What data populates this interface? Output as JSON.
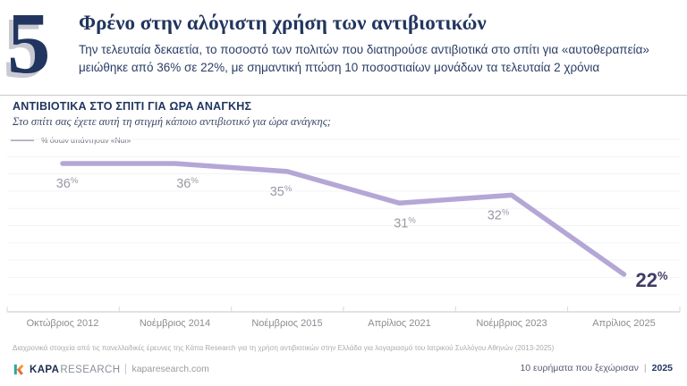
{
  "page": {
    "number": "5",
    "title": "Φρένο στην αλόγιστη χρήση των αντιβιοτικών",
    "subtitle_line1": "Την τελευταία δεκαετία, το ποσοστό των πολιτών που διατηρούσε αντιβιοτικά στο σπίτι για «αυτοθεραπεία»",
    "subtitle_line2": "μειώθηκε από 36% σε 22%, με σημαντική πτώση 10 ποσοστιαίων μονάδων τα τελευταία 2 χρόνια"
  },
  "section": {
    "title": "ΑΝΤΙΒΙΟΤΙΚΑ ΣΤΟ ΣΠΙΤΙ ΓΙΑ ΩΡΑ ΑΝΑΓΚΗΣ",
    "question": "Στο σπίτι σας έχετε αυτή τη στιγμή κάποιο αντιβιοτικό για ώρα ανάγκης;",
    "legend_label": "% όσων απάντησαν «Ναι»"
  },
  "chart_data": {
    "type": "line",
    "title": "ΑΝΤΙΒΙΟΤΙΚΑ ΣΤΟ ΣΠΙΤΙ ΓΙΑ ΩΡΑ ΑΝΑΓΚΗΣ",
    "subtitle": "Στο σπίτι σας έχετε αυτή τη στιγμή κάποιο αντιβιοτικό για ώρα ανάγκης;",
    "categories": [
      "Οκτώβριος 2012",
      "Νοέμβριος 2014",
      "Νοέμβριος 2015",
      "Απρίλιος 2021",
      "Νοέμβριος 2023",
      "Απρίλιος 2025"
    ],
    "series": [
      {
        "name": "% όσων απάντησαν «Ναι»",
        "values": [
          36,
          36,
          35,
          31,
          32,
          22
        ]
      }
    ],
    "unit": "%",
    "ylim": [
      20,
      38
    ],
    "grid": true,
    "legend_position": "top-left",
    "line_color": "#b4a7d6",
    "label_color": "#9a99a6",
    "last_label_color": "#3f3c64",
    "grid_color": "#f3f2f6",
    "axis_color": "#d9d9de"
  },
  "footnote": "Διαχρονικά στοιχεία από τις πανελλαδικές έρευνες της Κάπα Research για τη χρήση αντιβιοτικών στην Ελλάδα για λογαριασμό του Ιατρικού Συλλόγου Αθηνών (2013-2025)",
  "footer": {
    "brand_bold": "KAPA",
    "brand_light": "RESEARCH",
    "website": "kaparesearch.com",
    "separator": "|",
    "right_text": "10 ευρήματα που ξεχώρισαν",
    "right_year": "2025"
  }
}
